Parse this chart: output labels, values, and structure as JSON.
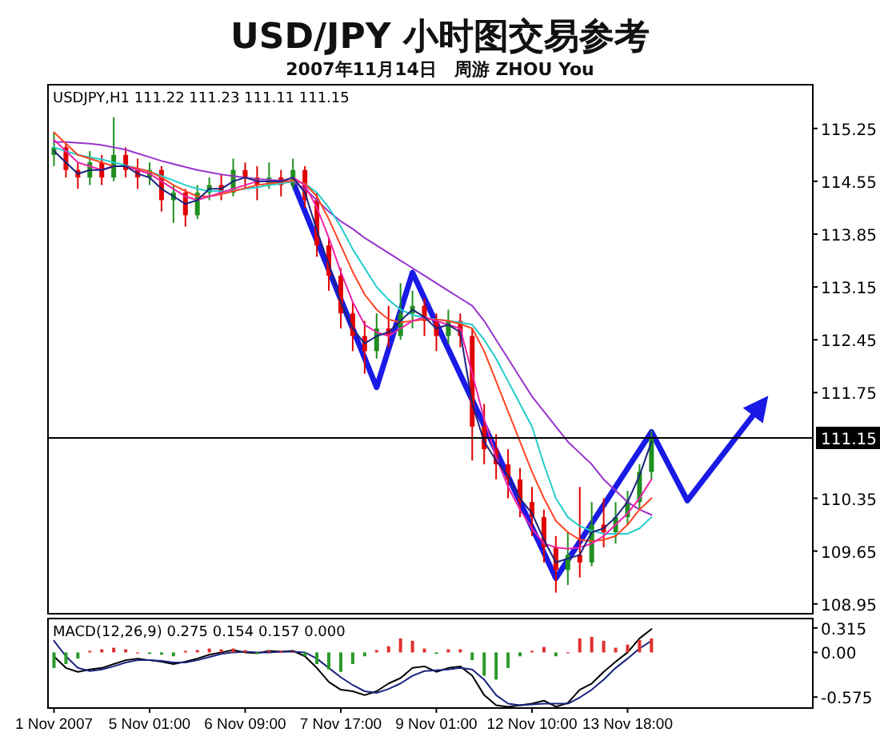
{
  "chart_data": [
    {
      "type": "candlestick",
      "title": "USD/JPY 小时图交易参考",
      "subtitle": "2007年11月14日　周游 ZHOU You",
      "annotations": [
        "USDJPY,H1  111.22 111.23 111.11 111.15"
      ],
      "tick_labels": "y",
      "categories": [
        null,
        null,
        null,
        null,
        null,
        null,
        null,
        null,
        null,
        null,
        null,
        null,
        null,
        null,
        null,
        null,
        null,
        null,
        null,
        null,
        null,
        null,
        null,
        null,
        null,
        null,
        null,
        null,
        null,
        null,
        null,
        null,
        null,
        null,
        null,
        null,
        null,
        null,
        null,
        null,
        null,
        null,
        null,
        null,
        null,
        null,
        null,
        null,
        null,
        null,
        null,
        null,
        null,
        null,
        null,
        null,
        null,
        null,
        null,
        null,
        null,
        null,
        null,
        null
      ],
      "ohlc": [
        [
          114.9,
          115.2,
          114.75,
          115.0
        ],
        [
          115.0,
          115.05,
          114.6,
          114.7
        ],
        [
          114.7,
          114.8,
          114.45,
          114.6
        ],
        [
          114.6,
          114.95,
          114.5,
          114.8
        ],
        [
          114.8,
          114.9,
          114.5,
          114.6
        ],
        [
          114.6,
          115.4,
          114.55,
          114.9
        ],
        [
          114.9,
          115.0,
          114.6,
          114.7
        ],
        [
          114.7,
          114.85,
          114.45,
          114.6
        ],
        [
          114.6,
          114.8,
          114.5,
          114.7
        ],
        [
          114.7,
          114.75,
          114.15,
          114.3
        ],
        [
          114.3,
          114.5,
          114.0,
          114.4
        ],
        [
          114.4,
          114.45,
          113.95,
          114.1
        ],
        [
          114.1,
          114.5,
          114.05,
          114.4
        ],
        [
          114.4,
          114.6,
          114.3,
          114.5
        ],
        [
          114.5,
          114.65,
          114.3,
          114.4
        ],
        [
          114.4,
          114.85,
          114.35,
          114.7
        ],
        [
          114.7,
          114.8,
          114.45,
          114.6
        ],
        [
          114.6,
          114.75,
          114.3,
          114.5
        ],
        [
          114.5,
          114.8,
          114.45,
          114.6
        ],
        [
          114.6,
          114.7,
          114.35,
          114.5
        ],
        [
          114.5,
          114.85,
          114.45,
          114.7
        ],
        [
          114.7,
          114.75,
          114.2,
          114.3
        ],
        [
          114.3,
          114.4,
          113.55,
          113.7
        ],
        [
          113.7,
          113.8,
          113.1,
          113.3
        ],
        [
          113.3,
          113.4,
          112.6,
          112.8
        ],
        [
          112.8,
          112.95,
          112.3,
          112.5
        ],
        [
          112.5,
          112.7,
          112.0,
          112.3
        ],
        [
          112.3,
          112.8,
          112.2,
          112.6
        ],
        [
          112.6,
          112.9,
          112.35,
          112.5
        ],
        [
          112.5,
          113.2,
          112.45,
          112.8
        ],
        [
          112.8,
          113.1,
          112.6,
          112.9
        ],
        [
          112.9,
          113.0,
          112.5,
          112.7
        ],
        [
          112.7,
          112.8,
          112.3,
          112.5
        ],
        [
          112.5,
          112.85,
          112.4,
          112.7
        ],
        [
          112.7,
          112.8,
          112.35,
          112.5
        ],
        [
          112.5,
          112.6,
          110.85,
          111.3
        ],
        [
          111.3,
          111.6,
          110.8,
          111.0
        ],
        [
          111.0,
          111.2,
          110.6,
          110.8
        ],
        [
          110.8,
          111.0,
          110.35,
          110.6
        ],
        [
          110.6,
          110.75,
          110.1,
          110.3
        ],
        [
          110.3,
          110.5,
          109.85,
          110.1
        ],
        [
          110.1,
          110.2,
          109.5,
          109.7
        ],
        [
          109.7,
          109.85,
          109.1,
          109.4
        ],
        [
          109.4,
          109.9,
          109.2,
          109.6
        ],
        [
          109.6,
          110.5,
          109.3,
          109.5
        ],
        [
          109.5,
          110.3,
          109.45,
          110.0
        ],
        [
          110.0,
          110.35,
          109.7,
          109.9
        ],
        [
          109.9,
          110.3,
          109.75,
          110.1
        ],
        [
          110.1,
          110.45,
          110.0,
          110.3
        ],
        [
          110.3,
          110.8,
          110.2,
          110.7
        ],
        [
          110.7,
          111.25,
          110.6,
          111.15
        ],
        null,
        null,
        null,
        null,
        null,
        null,
        null,
        null,
        null,
        null,
        null,
        null,
        null
      ],
      "colors": [
        "#1f8f1f",
        "#e00000",
        "#e00000",
        "#1f8f1f",
        "#e00000",
        "#1f8f1f",
        "#e00000",
        "#e00000",
        "#1f8f1f",
        "#e00000",
        "#1f8f1f",
        "#e00000",
        "#1f8f1f",
        "#1f8f1f",
        "#e00000",
        "#1f8f1f",
        "#e00000",
        "#e00000",
        "#1f8f1f",
        "#e00000",
        "#1f8f1f",
        "#e00000",
        "#e00000",
        "#e00000",
        "#e00000",
        "#e00000",
        "#e00000",
        "#1f8f1f",
        "#e00000",
        "#1f8f1f",
        "#1f8f1f",
        "#e00000",
        "#e00000",
        "#1f8f1f",
        "#e00000",
        "#e00000",
        "#e00000",
        "#e00000",
        "#e00000",
        "#e00000",
        "#e00000",
        "#e00000",
        "#e00000",
        "#1f8f1f",
        "#e00000",
        "#1f8f1f",
        "#e00000",
        "#1f8f1f",
        "#1f8f1f",
        "#1f8f1f",
        "#1f8f1f",
        null,
        null,
        null,
        null,
        null,
        null,
        null,
        null,
        null,
        null,
        null,
        null,
        null
      ],
      "series": [
        {
          "type": "line",
          "color": "#9933cc",
          "values": [
            115.07,
            115.07,
            115.06,
            115.05,
            115.03,
            115.0,
            114.97,
            114.92,
            114.87,
            114.82,
            114.78,
            114.74,
            114.7,
            114.67,
            114.64,
            114.62,
            114.6,
            114.58,
            114.57,
            114.56,
            114.55,
            114.45,
            114.3,
            114.15,
            114.02,
            113.92,
            113.8,
            113.7,
            113.6,
            113.5,
            113.4,
            113.3,
            113.2,
            113.1,
            113.0,
            112.9,
            112.7,
            112.45,
            112.2,
            111.95,
            111.7,
            111.5,
            111.3,
            111.1,
            110.95,
            110.8,
            110.6,
            110.45,
            110.3,
            110.2,
            110.13,
            null,
            null,
            null,
            null,
            null,
            null,
            null,
            null,
            null,
            null,
            null,
            null,
            null
          ]
        },
        {
          "type": "line",
          "color": "#22cccc",
          "values": [
            115.0,
            114.95,
            114.9,
            114.87,
            114.84,
            114.8,
            114.76,
            114.72,
            114.68,
            114.62,
            114.56,
            114.5,
            114.45,
            114.42,
            114.42,
            114.43,
            114.45,
            114.47,
            114.5,
            114.52,
            114.55,
            114.52,
            114.4,
            114.2,
            113.95,
            113.65,
            113.4,
            113.15,
            112.98,
            112.85,
            112.78,
            112.74,
            112.72,
            112.7,
            112.68,
            112.65,
            112.45,
            112.2,
            111.9,
            111.6,
            111.3,
            110.8,
            110.35,
            110.1,
            109.98,
            109.92,
            109.88,
            109.88,
            109.88,
            109.95,
            110.1,
            null,
            null,
            null,
            null,
            null,
            null,
            null,
            null,
            null,
            null,
            null,
            null,
            null
          ]
        },
        {
          "type": "line",
          "color": "#ff4422",
          "values": [
            115.2,
            115.05,
            114.9,
            114.85,
            114.8,
            114.75,
            114.75,
            114.72,
            114.68,
            114.6,
            114.5,
            114.42,
            114.35,
            114.35,
            114.38,
            114.42,
            114.46,
            114.5,
            114.52,
            114.54,
            114.56,
            114.52,
            114.35,
            114.05,
            113.7,
            113.35,
            113.05,
            112.85,
            112.72,
            112.68,
            112.7,
            112.72,
            112.72,
            112.7,
            112.66,
            112.6,
            112.3,
            111.9,
            111.5,
            111.1,
            110.7,
            110.35,
            110.05,
            109.9,
            109.8,
            109.78,
            109.8,
            109.85,
            110.0,
            110.2,
            110.35,
            null,
            null,
            null,
            null,
            null,
            null,
            null,
            null,
            null,
            null,
            null,
            null,
            null
          ]
        },
        {
          "type": "line",
          "color": "#ee22aa",
          "values": [
            115.1,
            114.95,
            114.8,
            114.75,
            114.7,
            114.75,
            114.75,
            114.7,
            114.65,
            114.55,
            114.45,
            114.35,
            114.3,
            114.35,
            114.4,
            114.45,
            114.5,
            114.55,
            114.55,
            114.55,
            114.6,
            114.5,
            114.2,
            113.8,
            113.35,
            112.95,
            112.65,
            112.55,
            112.5,
            112.6,
            112.7,
            112.75,
            112.7,
            112.65,
            112.6,
            112.0,
            111.4,
            110.9,
            110.5,
            110.2,
            109.95,
            109.75,
            109.7,
            109.68,
            109.7,
            109.75,
            109.85,
            110.0,
            110.15,
            110.35,
            110.6,
            null,
            null,
            null,
            null,
            null,
            null,
            null,
            null,
            null,
            null,
            null,
            null,
            null
          ]
        },
        {
          "type": "line",
          "color": "#1a237e",
          "values": [
            114.95,
            114.8,
            114.65,
            114.7,
            114.7,
            114.75,
            114.75,
            114.65,
            114.6,
            114.45,
            114.35,
            114.25,
            114.3,
            114.45,
            114.45,
            114.55,
            114.6,
            114.55,
            114.55,
            114.55,
            114.6,
            114.4,
            113.9,
            113.45,
            112.95,
            112.6,
            112.4,
            112.5,
            112.55,
            112.7,
            112.85,
            112.75,
            112.6,
            112.65,
            112.55,
            111.6,
            111.1,
            110.85,
            110.65,
            110.35,
            110.15,
            109.8,
            109.5,
            109.55,
            109.6,
            109.9,
            109.95,
            110.1,
            110.3,
            110.65,
            111.1,
            null,
            null,
            null,
            null,
            null,
            null,
            null,
            null,
            null,
            null,
            null,
            null,
            null
          ]
        },
        {
          "type": "line",
          "color": "#1a1ae6",
          "values": [
            null,
            null,
            null,
            null,
            null,
            null,
            null,
            null,
            null,
            null,
            null,
            null,
            null,
            null,
            null,
            null,
            null,
            null,
            null,
            null,
            114.54,
            null,
            null,
            null,
            null,
            null,
            null,
            111.82,
            null,
            null,
            113.34,
            null,
            null,
            null,
            null,
            null,
            null,
            null,
            null,
            null,
            null,
            null,
            109.29,
            null,
            null,
            null,
            null,
            null,
            null,
            null,
            111.23,
            null,
            null,
            110.32,
            null,
            null,
            null,
            null,
            null,
            111.55,
            null,
            null,
            null,
            null
          ]
        }
      ],
      "ylim": [
        108.82,
        115.83
      ],
      "yticks": [
        115.25,
        114.55,
        113.85,
        113.15,
        112.45,
        111.75,
        110.35,
        109.65,
        108.95
      ],
      "ref_lines": [
        {
          "axis": "y",
          "value": 111.15,
          "label": "111.15",
          "color": "#000000"
        }
      ]
    },
    {
      "type": "bar",
      "annotations": [
        "MACD(12,26,9) 0.275 0.154 0.157 0.000"
      ],
      "categories": [
        "1 Nov 2007",
        null,
        null,
        null,
        null,
        null,
        null,
        null,
        "5 Nov 01:00",
        null,
        null,
        null,
        null,
        null,
        null,
        null,
        "6 Nov 09:00",
        null,
        null,
        null,
        null,
        null,
        null,
        null,
        "7 Nov 17:00",
        null,
        null,
        null,
        null,
        null,
        null,
        null,
        "9 Nov 01:00",
        null,
        null,
        null,
        null,
        null,
        null,
        null,
        "12 Nov 10:00",
        null,
        null,
        null,
        null,
        null,
        null,
        null,
        "13 Nov 18:00",
        null,
        null,
        null,
        null,
        null,
        null,
        null,
        null,
        null,
        null,
        null,
        null,
        null,
        null,
        null
      ],
      "series": [
        {
          "type": "bar",
          "values": [
            -0.2,
            -0.15,
            -0.08,
            0.02,
            0.04,
            0.06,
            0.04,
            0.0,
            -0.02,
            -0.03,
            -0.05,
            0.02,
            0.03,
            0.05,
            0.04,
            0.05,
            0.03,
            -0.02,
            0.02,
            0.02,
            0.01,
            -0.05,
            -0.15,
            -0.22,
            -0.25,
            -0.15,
            -0.05,
            0.03,
            0.08,
            0.18,
            0.15,
            0.05,
            -0.02,
            0.04,
            0.04,
            -0.1,
            -0.3,
            -0.35,
            -0.2,
            -0.05,
            0.02,
            0.07,
            -0.05,
            0.0,
            0.18,
            0.2,
            0.15,
            0.06,
            0.1,
            0.16,
            0.18,
            null,
            null,
            null,
            null,
            null,
            null,
            null,
            null,
            null,
            null,
            null,
            null,
            null
          ],
          "colors": [
            "#2a9a2a",
            "#2a9a2a",
            "#2a9a2a",
            "#e03030",
            "#e03030",
            "#e03030",
            "#e03030",
            "#e03030",
            "#2a9a2a",
            "#2a9a2a",
            "#2a9a2a",
            "#e03030",
            "#e03030",
            "#e03030",
            "#e03030",
            "#e03030",
            "#e03030",
            "#2a9a2a",
            "#e03030",
            "#e03030",
            "#e03030",
            "#2a9a2a",
            "#2a9a2a",
            "#2a9a2a",
            "#2a9a2a",
            "#2a9a2a",
            "#2a9a2a",
            "#e03030",
            "#e03030",
            "#e03030",
            "#e03030",
            "#e03030",
            "#2a9a2a",
            "#e03030",
            "#e03030",
            "#2a9a2a",
            "#2a9a2a",
            "#2a9a2a",
            "#2a9a2a",
            "#2a9a2a",
            "#e03030",
            "#e03030",
            "#2a9a2a",
            "#e03030",
            "#e03030",
            "#e03030",
            "#e03030",
            "#e03030",
            "#e03030",
            "#e03030",
            "#e03030",
            null,
            null,
            null,
            null,
            null,
            null,
            null,
            null,
            null,
            null,
            null,
            null,
            null
          ]
        },
        {
          "type": "line",
          "color": "#000000",
          "values": [
            -0.05,
            -0.2,
            -0.25,
            -0.22,
            -0.2,
            -0.15,
            -0.1,
            -0.08,
            -0.1,
            -0.12,
            -0.15,
            -0.12,
            -0.08,
            -0.03,
            0.0,
            0.03,
            0.0,
            -0.01,
            0.02,
            0.01,
            0.02,
            -0.05,
            -0.2,
            -0.38,
            -0.48,
            -0.5,
            -0.55,
            -0.5,
            -0.4,
            -0.33,
            -0.2,
            -0.18,
            -0.25,
            -0.2,
            -0.18,
            -0.3,
            -0.55,
            -0.68,
            -0.7,
            -0.68,
            -0.66,
            -0.62,
            -0.7,
            -0.65,
            -0.48,
            -0.4,
            -0.25,
            -0.12,
            0.0,
            0.18,
            0.3,
            null,
            null,
            null,
            null,
            null,
            null,
            null,
            null,
            null,
            null,
            null,
            null,
            null
          ]
        },
        {
          "type": "line",
          "color": "#1a237e",
          "values": [
            0.15,
            -0.05,
            -0.2,
            -0.24,
            -0.22,
            -0.18,
            -0.13,
            -0.1,
            -0.1,
            -0.11,
            -0.13,
            -0.13,
            -0.1,
            -0.06,
            -0.02,
            0.0,
            0.01,
            0.0,
            0.0,
            0.01,
            0.01,
            0.0,
            -0.08,
            -0.2,
            -0.32,
            -0.42,
            -0.5,
            -0.52,
            -0.47,
            -0.4,
            -0.3,
            -0.24,
            -0.23,
            -0.22,
            -0.2,
            -0.22,
            -0.35,
            -0.55,
            -0.66,
            -0.68,
            -0.67,
            -0.66,
            -0.66,
            -0.66,
            -0.58,
            -0.48,
            -0.35,
            -0.2,
            -0.08,
            0.05,
            0.15,
            null,
            null,
            null,
            null,
            null,
            null,
            null,
            null,
            null,
            null,
            null,
            null,
            null
          ]
        }
      ],
      "ylim": [
        -0.716,
        0.436
      ],
      "yticks": [
        0.315,
        {
          "value": 0,
          "label": "0.00"
        },
        -0.575
      ]
    }
  ]
}
